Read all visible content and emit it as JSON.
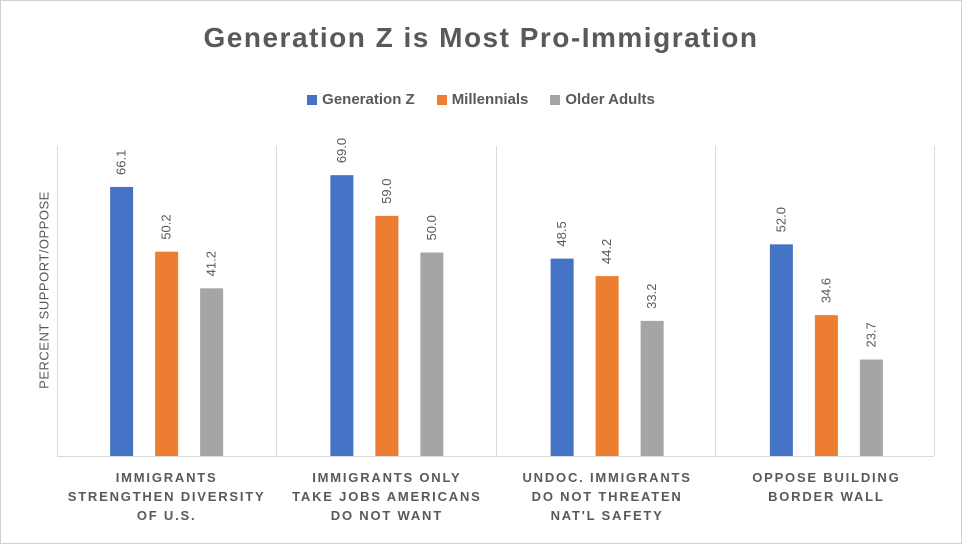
{
  "chart_data": {
    "type": "bar",
    "title": "Generation  Z is Most Pro-Immigration",
    "ylabel": "PERCENT SUPPORT/OPPOSE",
    "xlabel": "",
    "ylim": [
      0,
      75
    ],
    "grid": false,
    "legend_position": "top",
    "categories": [
      "IMMIGRANTS STRENGTHEN DIVERSITY OF U.S.",
      "IMMIGRANTS ONLY TAKE JOBS AMERICANS DO NOT WANT",
      "UNDOC. IMMIGRANTS DO NOT THREATEN NAT'L SAFETY",
      "OPPOSE BUILDING BORDER WALL"
    ],
    "category_lines": [
      [
        "IMMIGRANTS",
        "STRENGTHEN DIVERSITY",
        "OF U.S."
      ],
      [
        "IMMIGRANTS ONLY",
        "TAKE JOBS AMERICANS",
        "DO NOT WANT"
      ],
      [
        "UNDOC. IMMIGRANTS",
        "DO NOT THREATEN",
        "NAT'L SAFETY"
      ],
      [
        "OPPOSE BUILDING",
        "BORDER WALL"
      ]
    ],
    "series": [
      {
        "name": "Generation Z",
        "color": "#4472c4",
        "values": [
          66.1,
          69.0,
          48.5,
          52.0
        ]
      },
      {
        "name": "Millennials",
        "color": "#ed7d31",
        "values": [
          50.2,
          59.0,
          44.2,
          34.6
        ]
      },
      {
        "name": "Older Adults",
        "color": "#a5a5a5",
        "values": [
          41.2,
          50.0,
          33.2,
          23.7
        ]
      }
    ]
  }
}
